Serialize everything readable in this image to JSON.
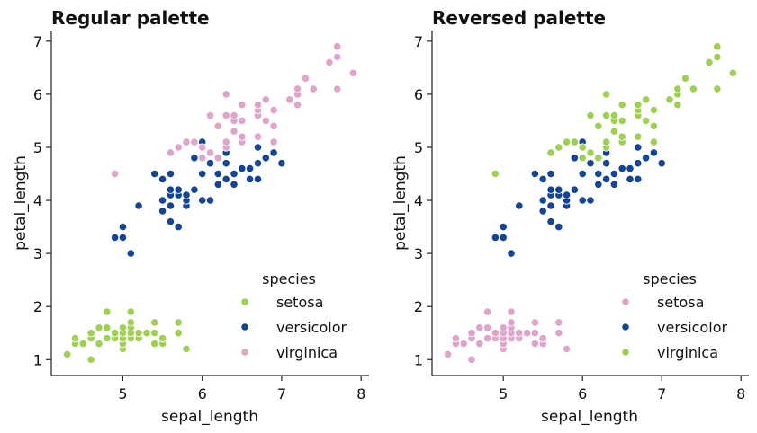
{
  "colors": {
    "setosa_regular": "#9fd150",
    "versicolor": "#12449a",
    "virginica_regular": "#e2a3ca",
    "axis": "#222222"
  },
  "chart_data": [
    {
      "type": "scatter",
      "title": "Regular palette",
      "xlabel": "sepal_length",
      "ylabel": "petal_length",
      "xlim": [
        4.1,
        8.1
      ],
      "ylim": [
        0.7,
        7.2
      ],
      "xticks": [
        "5",
        "6",
        "7",
        "8"
      ],
      "yticks": [
        "1",
        "2",
        "3",
        "4",
        "5",
        "6",
        "7"
      ],
      "grid": false,
      "legend": {
        "title": "species",
        "placement": "lower-right",
        "entries": [
          "setosa",
          "versicolor",
          "virginica"
        ]
      },
      "series": [
        {
          "name": "setosa",
          "color": "#9fd150",
          "points": [
            [
              4.3,
              1.1
            ],
            [
              4.4,
              1.3
            ],
            [
              4.4,
              1.4
            ],
            [
              4.5,
              1.3
            ],
            [
              4.6,
              1.0
            ],
            [
              4.6,
              1.4
            ],
            [
              4.6,
              1.5
            ],
            [
              4.7,
              1.3
            ],
            [
              4.7,
              1.6
            ],
            [
              4.8,
              1.4
            ],
            [
              4.8,
              1.6
            ],
            [
              4.8,
              1.9
            ],
            [
              4.9,
              1.4
            ],
            [
              4.9,
              1.5
            ],
            [
              5.0,
              1.2
            ],
            [
              5.0,
              1.3
            ],
            [
              5.0,
              1.4
            ],
            [
              5.0,
              1.5
            ],
            [
              5.0,
              1.6
            ],
            [
              5.1,
              1.4
            ],
            [
              5.1,
              1.5
            ],
            [
              5.1,
              1.6
            ],
            [
              5.1,
              1.7
            ],
            [
              5.1,
              1.9
            ],
            [
              5.2,
              1.4
            ],
            [
              5.2,
              1.5
            ],
            [
              5.3,
              1.5
            ],
            [
              5.4,
              1.3
            ],
            [
              5.4,
              1.5
            ],
            [
              5.4,
              1.7
            ],
            [
              5.5,
              1.3
            ],
            [
              5.5,
              1.4
            ],
            [
              5.7,
              1.5
            ],
            [
              5.7,
              1.7
            ],
            [
              5.8,
              1.2
            ]
          ]
        },
        {
          "name": "versicolor",
          "color": "#12449a",
          "points": [
            [
              4.9,
              3.3
            ],
            [
              5.0,
              3.3
            ],
            [
              5.0,
              3.5
            ],
            [
              5.1,
              3.0
            ],
            [
              5.2,
              3.9
            ],
            [
              5.4,
              4.5
            ],
            [
              5.5,
              3.8
            ],
            [
              5.5,
              4.0
            ],
            [
              5.5,
              4.4
            ],
            [
              5.6,
              3.6
            ],
            [
              5.6,
              3.9
            ],
            [
              5.6,
              4.1
            ],
            [
              5.6,
              4.2
            ],
            [
              5.6,
              4.5
            ],
            [
              5.7,
              3.5
            ],
            [
              5.7,
              4.1
            ],
            [
              5.7,
              4.2
            ],
            [
              5.8,
              3.9
            ],
            [
              5.8,
              4.0
            ],
            [
              5.8,
              4.1
            ],
            [
              5.9,
              4.2
            ],
            [
              5.9,
              4.8
            ],
            [
              6.0,
              4.0
            ],
            [
              6.0,
              4.5
            ],
            [
              6.0,
              5.1
            ],
            [
              6.1,
              4.0
            ],
            [
              6.1,
              4.7
            ],
            [
              6.2,
              4.3
            ],
            [
              6.2,
              4.5
            ],
            [
              6.3,
              4.4
            ],
            [
              6.3,
              4.7
            ],
            [
              6.3,
              4.9
            ],
            [
              6.4,
              4.3
            ],
            [
              6.4,
              4.5
            ],
            [
              6.5,
              4.6
            ],
            [
              6.6,
              4.4
            ],
            [
              6.6,
              4.6
            ],
            [
              6.7,
              4.4
            ],
            [
              6.7,
              4.7
            ],
            [
              6.7,
              5.0
            ],
            [
              6.8,
              4.8
            ],
            [
              6.9,
              4.9
            ],
            [
              7.0,
              4.7
            ]
          ]
        },
        {
          "name": "virginica",
          "color": "#e2a3ca",
          "points": [
            [
              4.9,
              4.5
            ],
            [
              5.6,
              4.9
            ],
            [
              5.7,
              5.0
            ],
            [
              5.8,
              5.1
            ],
            [
              5.9,
              5.1
            ],
            [
              6.0,
              4.8
            ],
            [
              6.0,
              5.0
            ],
            [
              6.1,
              4.9
            ],
            [
              6.1,
              5.6
            ],
            [
              6.2,
              4.8
            ],
            [
              6.2,
              5.4
            ],
            [
              6.3,
              5.0
            ],
            [
              6.3,
              5.1
            ],
            [
              6.3,
              5.6
            ],
            [
              6.3,
              6.0
            ],
            [
              6.4,
              5.3
            ],
            [
              6.4,
              5.5
            ],
            [
              6.4,
              5.6
            ],
            [
              6.5,
              5.1
            ],
            [
              6.5,
              5.2
            ],
            [
              6.5,
              5.5
            ],
            [
              6.5,
              5.8
            ],
            [
              6.7,
              5.2
            ],
            [
              6.7,
              5.6
            ],
            [
              6.7,
              5.7
            ],
            [
              6.7,
              5.8
            ],
            [
              6.8,
              5.5
            ],
            [
              6.8,
              5.9
            ],
            [
              6.9,
              5.1
            ],
            [
              6.9,
              5.4
            ],
            [
              6.9,
              5.7
            ],
            [
              7.1,
              5.9
            ],
            [
              7.2,
              5.8
            ],
            [
              7.2,
              6.0
            ],
            [
              7.2,
              6.1
            ],
            [
              7.3,
              6.3
            ],
            [
              7.4,
              6.1
            ],
            [
              7.6,
              6.6
            ],
            [
              7.7,
              6.1
            ],
            [
              7.7,
              6.7
            ],
            [
              7.7,
              6.9
            ],
            [
              7.9,
              6.4
            ]
          ]
        }
      ]
    },
    {
      "type": "scatter",
      "title": "Reversed palette",
      "xlabel": "sepal_length",
      "ylabel": "petal_length",
      "xlim": [
        4.1,
        8.1
      ],
      "ylim": [
        0.7,
        7.2
      ],
      "xticks": [
        "5",
        "6",
        "7",
        "8"
      ],
      "yticks": [
        "1",
        "2",
        "3",
        "4",
        "5",
        "6",
        "7"
      ],
      "grid": false,
      "legend": {
        "title": "species",
        "placement": "lower-right",
        "entries": [
          "setosa",
          "versicolor",
          "virginica"
        ]
      },
      "series": [
        {
          "name": "setosa",
          "color": "#e2a3ca",
          "points": [
            [
              4.3,
              1.1
            ],
            [
              4.4,
              1.3
            ],
            [
              4.4,
              1.4
            ],
            [
              4.5,
              1.3
            ],
            [
              4.6,
              1.0
            ],
            [
              4.6,
              1.4
            ],
            [
              4.6,
              1.5
            ],
            [
              4.7,
              1.3
            ],
            [
              4.7,
              1.6
            ],
            [
              4.8,
              1.4
            ],
            [
              4.8,
              1.6
            ],
            [
              4.8,
              1.9
            ],
            [
              4.9,
              1.4
            ],
            [
              4.9,
              1.5
            ],
            [
              5.0,
              1.2
            ],
            [
              5.0,
              1.3
            ],
            [
              5.0,
              1.4
            ],
            [
              5.0,
              1.5
            ],
            [
              5.0,
              1.6
            ],
            [
              5.1,
              1.4
            ],
            [
              5.1,
              1.5
            ],
            [
              5.1,
              1.6
            ],
            [
              5.1,
              1.7
            ],
            [
              5.1,
              1.9
            ],
            [
              5.2,
              1.4
            ],
            [
              5.2,
              1.5
            ],
            [
              5.3,
              1.5
            ],
            [
              5.4,
              1.3
            ],
            [
              5.4,
              1.5
            ],
            [
              5.4,
              1.7
            ],
            [
              5.5,
              1.3
            ],
            [
              5.5,
              1.4
            ],
            [
              5.7,
              1.5
            ],
            [
              5.7,
              1.7
            ],
            [
              5.8,
              1.2
            ]
          ]
        },
        {
          "name": "versicolor",
          "color": "#12449a",
          "points": [
            [
              4.9,
              3.3
            ],
            [
              5.0,
              3.3
            ],
            [
              5.0,
              3.5
            ],
            [
              5.1,
              3.0
            ],
            [
              5.2,
              3.9
            ],
            [
              5.4,
              4.5
            ],
            [
              5.5,
              3.8
            ],
            [
              5.5,
              4.0
            ],
            [
              5.5,
              4.4
            ],
            [
              5.6,
              3.6
            ],
            [
              5.6,
              3.9
            ],
            [
              5.6,
              4.1
            ],
            [
              5.6,
              4.2
            ],
            [
              5.6,
              4.5
            ],
            [
              5.7,
              3.5
            ],
            [
              5.7,
              4.1
            ],
            [
              5.7,
              4.2
            ],
            [
              5.8,
              3.9
            ],
            [
              5.8,
              4.0
            ],
            [
              5.8,
              4.1
            ],
            [
              5.9,
              4.2
            ],
            [
              5.9,
              4.8
            ],
            [
              6.0,
              4.0
            ],
            [
              6.0,
              4.5
            ],
            [
              6.0,
              5.1
            ],
            [
              6.1,
              4.0
            ],
            [
              6.1,
              4.7
            ],
            [
              6.2,
              4.3
            ],
            [
              6.2,
              4.5
            ],
            [
              6.3,
              4.4
            ],
            [
              6.3,
              4.7
            ],
            [
              6.3,
              4.9
            ],
            [
              6.4,
              4.3
            ],
            [
              6.4,
              4.5
            ],
            [
              6.5,
              4.6
            ],
            [
              6.6,
              4.4
            ],
            [
              6.6,
              4.6
            ],
            [
              6.7,
              4.4
            ],
            [
              6.7,
              4.7
            ],
            [
              6.7,
              5.0
            ],
            [
              6.8,
              4.8
            ],
            [
              6.9,
              4.9
            ],
            [
              7.0,
              4.7
            ]
          ]
        },
        {
          "name": "virginica",
          "color": "#9fd150",
          "points": [
            [
              4.9,
              4.5
            ],
            [
              5.6,
              4.9
            ],
            [
              5.7,
              5.0
            ],
            [
              5.8,
              5.1
            ],
            [
              5.9,
              5.1
            ],
            [
              6.0,
              4.8
            ],
            [
              6.0,
              5.0
            ],
            [
              6.1,
              4.9
            ],
            [
              6.1,
              5.6
            ],
            [
              6.2,
              4.8
            ],
            [
              6.2,
              5.4
            ],
            [
              6.3,
              5.0
            ],
            [
              6.3,
              5.1
            ],
            [
              6.3,
              5.6
            ],
            [
              6.3,
              6.0
            ],
            [
              6.4,
              5.3
            ],
            [
              6.4,
              5.5
            ],
            [
              6.4,
              5.6
            ],
            [
              6.5,
              5.1
            ],
            [
              6.5,
              5.2
            ],
            [
              6.5,
              5.5
            ],
            [
              6.5,
              5.8
            ],
            [
              6.7,
              5.2
            ],
            [
              6.7,
              5.6
            ],
            [
              6.7,
              5.7
            ],
            [
              6.7,
              5.8
            ],
            [
              6.8,
              5.5
            ],
            [
              6.8,
              5.9
            ],
            [
              6.9,
              5.1
            ],
            [
              6.9,
              5.4
            ],
            [
              6.9,
              5.7
            ],
            [
              7.1,
              5.9
            ],
            [
              7.2,
              5.8
            ],
            [
              7.2,
              6.0
            ],
            [
              7.2,
              6.1
            ],
            [
              7.3,
              6.3
            ],
            [
              7.4,
              6.1
            ],
            [
              7.6,
              6.6
            ],
            [
              7.7,
              6.1
            ],
            [
              7.7,
              6.7
            ],
            [
              7.7,
              6.9
            ],
            [
              7.9,
              6.4
            ]
          ]
        }
      ]
    }
  ]
}
